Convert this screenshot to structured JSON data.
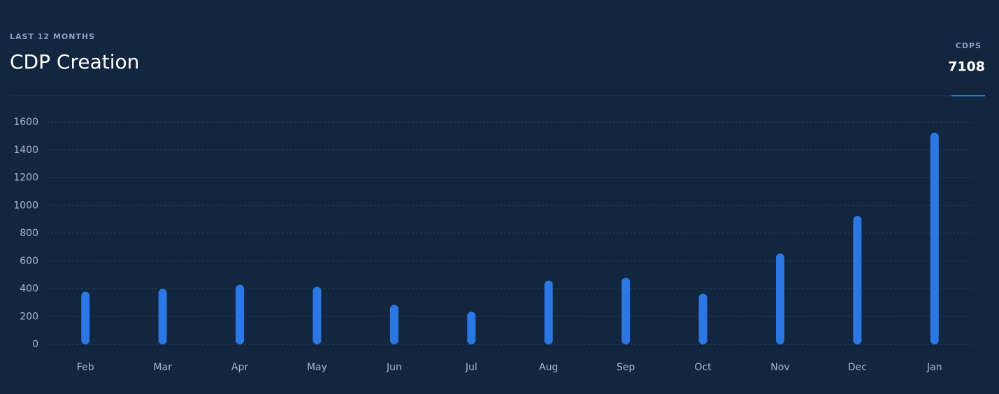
{
  "chart_data": {
    "type": "bar",
    "subtitle": "LAST 12 MONTHS",
    "title": "CDP Creation",
    "stat": {
      "label": "CDPS",
      "value": 7108
    },
    "categories": [
      "Feb",
      "Mar",
      "Apr",
      "May",
      "Jun",
      "Jul",
      "Aug",
      "Sep",
      "Oct",
      "Nov",
      "Dec",
      "Jan"
    ],
    "values": [
      380,
      400,
      430,
      415,
      285,
      235,
      460,
      480,
      365,
      655,
      925,
      1525
    ],
    "color": "#2b78e4",
    "ylim": [
      0,
      1600
    ],
    "yticks": [
      0,
      200,
      400,
      600,
      800,
      1000,
      1200,
      1400,
      1600
    ],
    "grid": true
  }
}
